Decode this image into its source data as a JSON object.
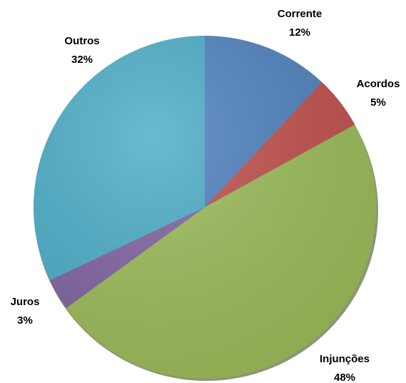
{
  "chart_data": {
    "type": "pie",
    "categories": [
      "Corrente",
      "Acordos",
      "Injunções",
      "Juros",
      "Outros"
    ],
    "values": [
      12,
      5,
      48,
      3,
      32
    ],
    "value_labels": [
      "12%",
      "5%",
      "48%",
      "3%",
      "32%"
    ],
    "colors": [
      "#4f81bd",
      "#c0504d",
      "#9bbb59",
      "#8064a2",
      "#4bacc6"
    ]
  }
}
